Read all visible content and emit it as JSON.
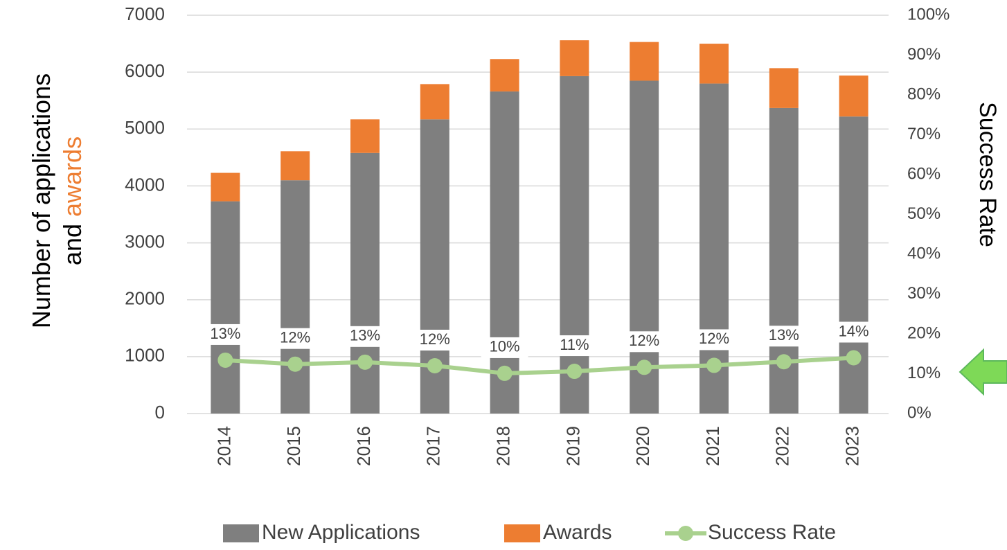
{
  "chart_data": {
    "type": "bar",
    "ylabel": [
      "Number of applications",
      "and",
      "awards"
    ],
    "y2label": "Success Rate",
    "categories": [
      "2014",
      "2015",
      "2016",
      "2017",
      "2018",
      "2019",
      "2020",
      "2021",
      "2022",
      "2023"
    ],
    "series": [
      {
        "name": "New Applications",
        "color": "#7f7f7f",
        "stacked": true,
        "values": [
          3730,
          4100,
          4580,
          5170,
          5660,
          5930,
          5850,
          5800,
          5370,
          5220
        ]
      },
      {
        "name": "Awards",
        "color": "#ed7d31",
        "stacked": true,
        "values": [
          500,
          510,
          590,
          620,
          570,
          630,
          680,
          700,
          700,
          720
        ]
      },
      {
        "name": "Success Rate",
        "color": "#a9d18e",
        "type": "line",
        "axis": "y2",
        "values": [
          13.4,
          12.4,
          12.9,
          12.0,
          10.1,
          10.6,
          11.6,
          12.1,
          13.0,
          14.0
        ],
        "value_labels": [
          "13%",
          "12%",
          "13%",
          "12%",
          "10%",
          "11%",
          "12%",
          "12%",
          "13%",
          "14%"
        ]
      }
    ],
    "ylim": [
      0,
      7000
    ],
    "yticks": [
      0,
      1000,
      2000,
      3000,
      4000,
      5000,
      6000,
      7000
    ],
    "y2lim": [
      0,
      100
    ],
    "y2ticks": [
      {
        "value": 0,
        "label": "0%"
      },
      {
        "value": 10,
        "label": "10%"
      },
      {
        "value": 20,
        "label": "20%"
      },
      {
        "value": 30,
        "label": "30%"
      },
      {
        "value": 40,
        "label": "40%"
      },
      {
        "value": 50,
        "label": "50%"
      },
      {
        "value": 60,
        "label": "60%"
      },
      {
        "value": 70,
        "label": "70%"
      },
      {
        "value": 80,
        "label": "80%"
      },
      {
        "value": 90,
        "label": "90%"
      },
      {
        "value": 100,
        "label": "100%"
      }
    ],
    "grid": true,
    "legend": "bottom"
  }
}
